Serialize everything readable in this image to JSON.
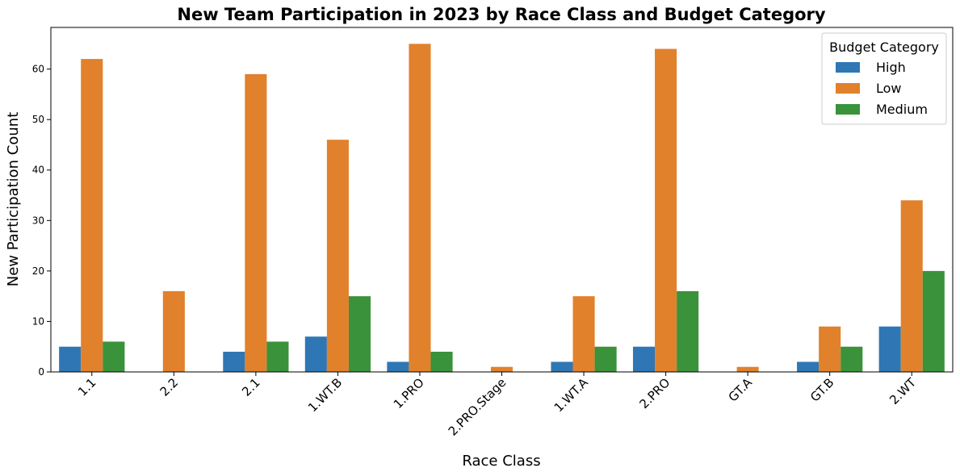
{
  "chart_data": {
    "type": "bar",
    "title": "New Team Participation in 2023 by Race Class and Budget Category",
    "xlabel": "Race Class",
    "ylabel": "New Participation Count",
    "categories": [
      "1.1",
      "2.2",
      "2.1",
      "1.WT.B",
      "1.PRO",
      "2.PRO.Stage",
      "1.WT.A",
      "2.PRO",
      "GT.A",
      "GT.B",
      "2.WT"
    ],
    "series": [
      {
        "name": "High",
        "color": "#2f77b4",
        "values": [
          5,
          0,
          4,
          7,
          2,
          0,
          2,
          5,
          0,
          2,
          9
        ]
      },
      {
        "name": "Low",
        "color": "#e1812c",
        "values": [
          62,
          16,
          59,
          46,
          65,
          1,
          15,
          64,
          1,
          9,
          34
        ]
      },
      {
        "name": "Medium",
        "color": "#3a923a",
        "values": [
          6,
          0,
          6,
          15,
          4,
          0,
          5,
          16,
          0,
          5,
          20
        ]
      }
    ],
    "ylim": [
      0,
      68.25
    ],
    "yticks": [
      0,
      10,
      20,
      30,
      40,
      50,
      60
    ],
    "legend": {
      "title": "Budget Category",
      "placement": "top-right"
    },
    "grid": false
  }
}
